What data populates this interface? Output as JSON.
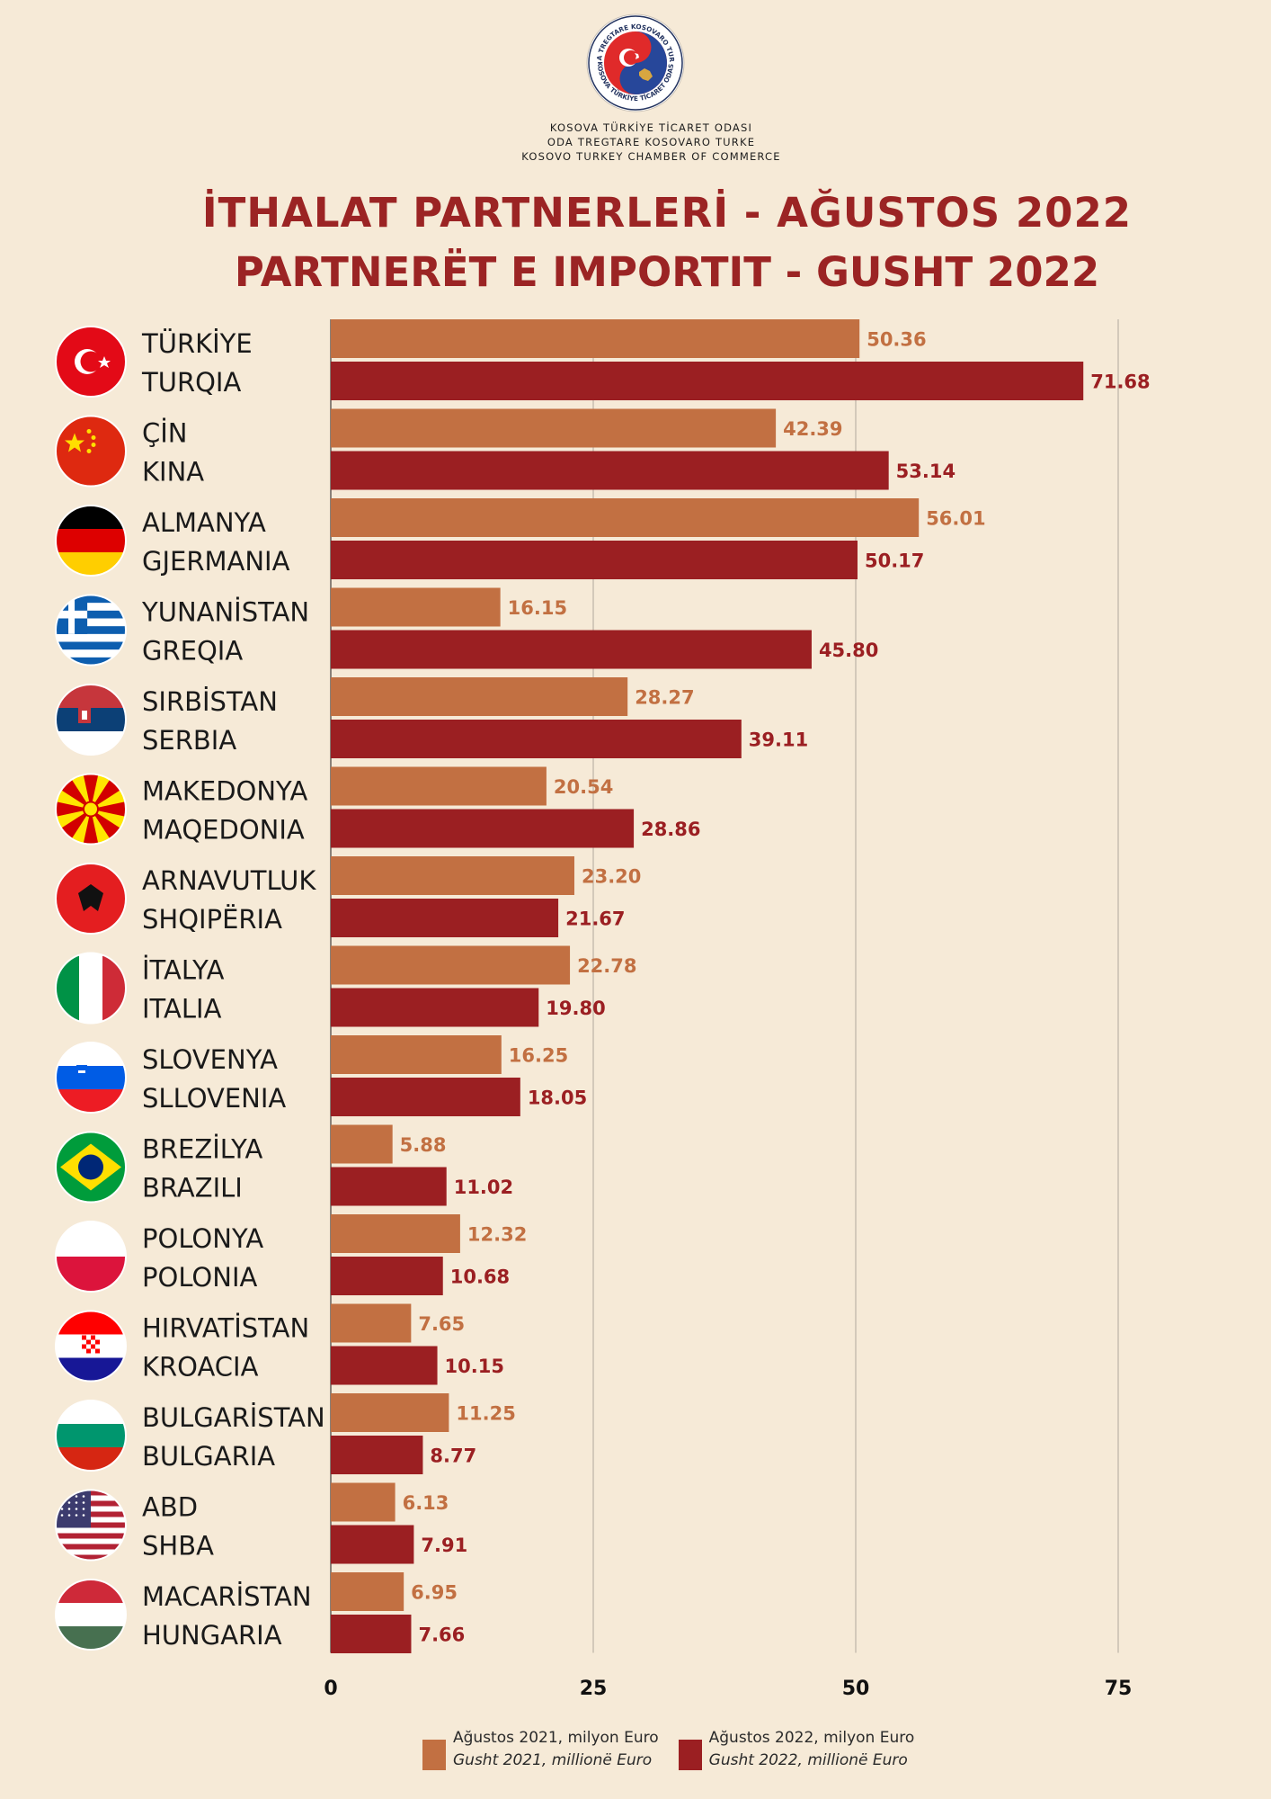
{
  "header": {
    "logo_text_top": "ODA TREGTARE KOSOVARO TURKE",
    "logo_text_bottom": "KOSOVA TÜRKİYE TİCARET ODASI",
    "org_lines": [
      "KOSOVA TÜRKİYE TİCARET ODASI",
      "ODA TREGTARE KOSOVARO TURKE",
      "KOSOVO TURKEY CHAMBER OF COMMERCE"
    ],
    "title_line1": "İTHALAT PARTNERLERİ - AĞUSTOS 2022",
    "title_line2": "PARTNERËT E IMPORTIT - GUSHT 2022"
  },
  "colors": {
    "background": "#f6ead7",
    "series_2021": "#c27042",
    "series_2022": "#9b1f22",
    "title": "#9b2424",
    "grid": "#bcb3a6"
  },
  "chart_data": {
    "type": "bar",
    "orientation": "horizontal",
    "categories": [
      {
        "tr": "TÜRKİYE",
        "sq": "TURQIA",
        "flag": "turkey-flag-icon"
      },
      {
        "tr": "ÇİN",
        "sq": "KINA",
        "flag": "china-flag-icon"
      },
      {
        "tr": "ALMANYA",
        "sq": "GJERMANIA",
        "flag": "germany-flag-icon"
      },
      {
        "tr": "YUNANİSTAN",
        "sq": "GREQIA",
        "flag": "greece-flag-icon"
      },
      {
        "tr": "SIRBİSTAN",
        "sq": "SERBIA",
        "flag": "serbia-flag-icon"
      },
      {
        "tr": "MAKEDONYA",
        "sq": "MAQEDONIA",
        "flag": "north-macedonia-flag-icon"
      },
      {
        "tr": "ARNAVUTLUK",
        "sq": "SHQIPËRIA",
        "flag": "albania-flag-icon"
      },
      {
        "tr": "İTALYA",
        "sq": "ITALIA",
        "flag": "italy-flag-icon"
      },
      {
        "tr": "SLOVENYA",
        "sq": "SLLOVENIA",
        "flag": "slovenia-flag-icon"
      },
      {
        "tr": "BREZİLYA",
        "sq": "BRAZILI",
        "flag": "brazil-flag-icon"
      },
      {
        "tr": "POLONYA",
        "sq": "POLONIA",
        "flag": "poland-flag-icon"
      },
      {
        "tr": "HIRVATİSTAN",
        "sq": "KROACIA",
        "flag": "croatia-flag-icon"
      },
      {
        "tr": "BULGARİSTAN",
        "sq": "BULGARIA",
        "flag": "bulgaria-flag-icon"
      },
      {
        "tr": "ABD",
        "sq": "SHBA",
        "flag": "usa-flag-icon"
      },
      {
        "tr": "MACARİSTAN",
        "sq": "HUNGARIA",
        "flag": "hungary-flag-icon"
      }
    ],
    "series": [
      {
        "name": "Ağustos 2021, milyon Euro",
        "name_alt": "Gusht 2021, millionë Euro",
        "values": [
          50.36,
          42.39,
          56.01,
          16.15,
          28.27,
          20.54,
          23.2,
          22.78,
          16.25,
          5.88,
          12.32,
          7.65,
          11.25,
          6.13,
          6.95
        ],
        "labels": [
          "50.36",
          "42.39",
          "56.01",
          "16.15",
          "28.27",
          "20.54",
          "23.20",
          "22.78",
          "16.25",
          "5.88",
          "12.32",
          "7.65",
          "11.25",
          "6.13",
          "6.95"
        ]
      },
      {
        "name": "Ağustos 2022, milyon Euro",
        "name_alt": "Gusht 2022, millionë Euro",
        "values": [
          71.68,
          53.14,
          50.17,
          45.8,
          39.11,
          28.86,
          21.67,
          19.8,
          18.05,
          11.02,
          10.68,
          10.15,
          8.77,
          7.91,
          7.66
        ],
        "labels": [
          "71.68",
          "53.14",
          "50.17",
          "45.80",
          "39.11",
          "28.86",
          "21.67",
          "19.80",
          "18.05",
          "11.02",
          "10.68",
          "10.15",
          "8.77",
          "7.91",
          "7.66"
        ]
      }
    ],
    "x_ticks": [
      "0",
      "25",
      "50",
      "75"
    ],
    "xlim": [
      0,
      75
    ],
    "grid": true,
    "legend_position": "bottom"
  }
}
